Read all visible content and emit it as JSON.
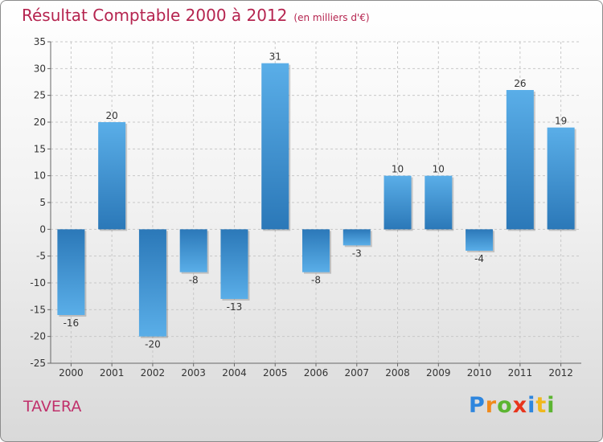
{
  "chart_data": {
    "type": "bar",
    "title": "Résultat Comptable 2000 à 2012",
    "unit": "(en milliers d'€)",
    "categories": [
      "2000",
      "2001",
      "2002",
      "2003",
      "2004",
      "2005",
      "2006",
      "2007",
      "2008",
      "2009",
      "2010",
      "2011",
      "2012"
    ],
    "values": [
      -16,
      20,
      -20,
      -8,
      -13,
      31,
      -8,
      -3,
      10,
      10,
      -4,
      26,
      19
    ],
    "value_labels": [
      "-16",
      "20",
      "-20",
      "-8",
      "-13",
      "31",
      "-8",
      "-3",
      "10",
      "10",
      "-4",
      "26",
      "19"
    ],
    "yticks": [
      35,
      30,
      25,
      20,
      15,
      10,
      5,
      0,
      -5,
      -10,
      -15,
      -20,
      -25
    ],
    "ylim": [
      -25,
      35
    ],
    "xlabel": "",
    "ylabel": "",
    "bar_color": "#3a8fd6"
  },
  "footer": {
    "place": "TAVERA",
    "logo_letters": [
      {
        "ch": "P",
        "color": "#2e86de"
      },
      {
        "ch": "r",
        "color": "#f08a1c"
      },
      {
        "ch": "o",
        "color": "#5cb531"
      },
      {
        "ch": "x",
        "color": "#e8341c"
      },
      {
        "ch": "i",
        "color": "#2e86de"
      },
      {
        "ch": "t",
        "color": "#f0b81c"
      },
      {
        "ch": "i",
        "color": "#5cb531"
      }
    ]
  }
}
